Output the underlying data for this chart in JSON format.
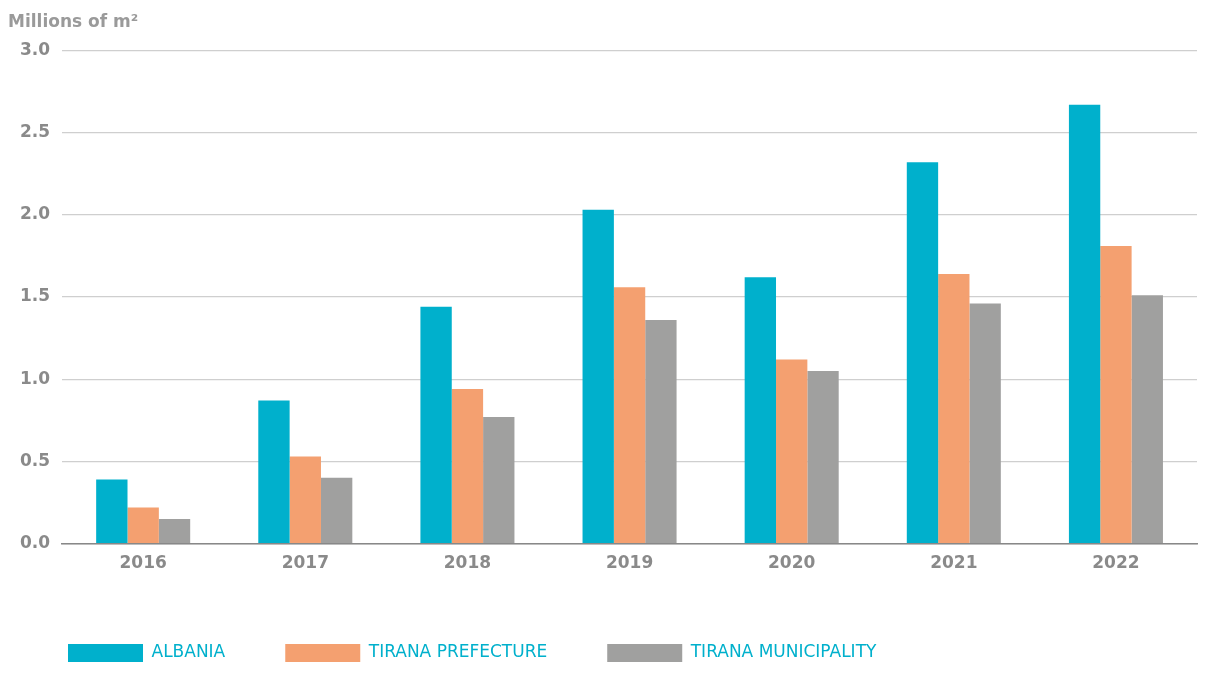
{
  "chart_data": {
    "type": "bar",
    "ylabel": "Millions of m²",
    "categories": [
      "2016",
      "2017",
      "2018",
      "2019",
      "2020",
      "2021",
      "2022"
    ],
    "series": [
      {
        "name": "ALBANIA",
        "color": "#00b0cc",
        "values": [
          0.39,
          0.87,
          1.44,
          2.03,
          1.62,
          2.32,
          2.67
        ]
      },
      {
        "name": "TIRANA PREFECTURE",
        "color": "#f4a070",
        "values": [
          0.22,
          0.53,
          0.94,
          1.56,
          1.12,
          1.64,
          1.81
        ]
      },
      {
        "name": "TIRANA MUNICIPALITY",
        "color": "#a0a09f",
        "values": [
          0.15,
          0.4,
          0.77,
          1.36,
          1.05,
          1.46,
          1.51
        ]
      }
    ],
    "ylim": [
      0,
      3
    ],
    "yticks": [
      {
        "value": 0,
        "label": "0.0"
      },
      {
        "value": 0.5,
        "label": "0.5"
      },
      {
        "value": 1,
        "label": "1.0"
      },
      {
        "value": 1.5,
        "label": "1.5"
      },
      {
        "value": 2,
        "label": "2.0"
      },
      {
        "value": 2.5,
        "label": "2.5"
      },
      {
        "value": 3,
        "label": "3.0"
      }
    ],
    "grid": "y",
    "legend": "bottom left"
  }
}
